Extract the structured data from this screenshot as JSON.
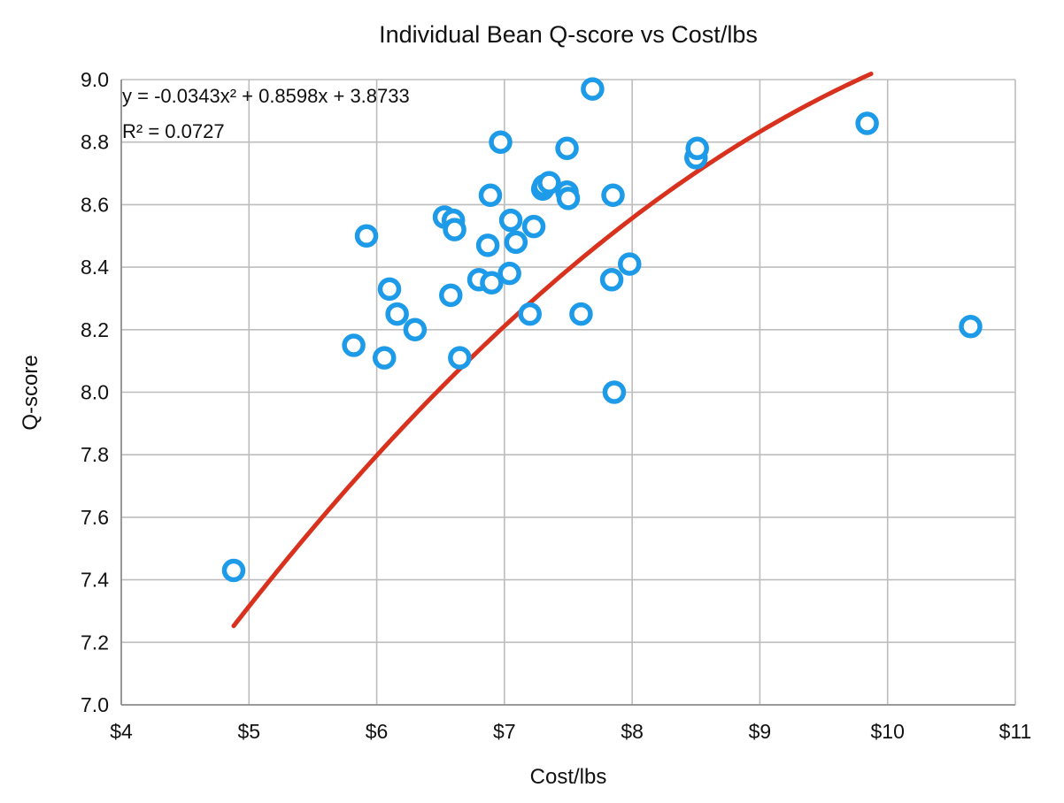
{
  "chart_data": {
    "type": "scatter",
    "title": "Individual Bean Q-score vs Cost/lbs",
    "xlabel": "Cost/lbs",
    "ylabel": "Q-score",
    "xlim": [
      4,
      11
    ],
    "ylim": [
      7.0,
      9.0
    ],
    "x_ticks": [
      4,
      5,
      6,
      7,
      8,
      9,
      10,
      11
    ],
    "x_tick_labels": [
      "$4",
      "$5",
      "$6",
      "$7",
      "$8",
      "$9",
      "$10",
      "$11"
    ],
    "y_ticks": [
      7.0,
      7.2,
      7.4,
      7.6,
      7.8,
      8.0,
      8.2,
      8.4,
      8.6,
      8.8,
      9.0
    ],
    "y_tick_labels": [
      "7.0",
      "7.2",
      "7.4",
      "7.6",
      "7.8",
      "8.0",
      "8.2",
      "8.4",
      "8.6",
      "8.8",
      "9.0"
    ],
    "grid": true,
    "legend": "none",
    "colors": {
      "points": "#1e9be8",
      "trendline": "#d8321e",
      "grid": "#bdbdbd",
      "axis": "#8c8c8c"
    },
    "series": [
      {
        "points": [
          {
            "x": 4.88,
            "y": 7.43
          },
          {
            "x": 5.82,
            "y": 8.15
          },
          {
            "x": 5.92,
            "y": 8.5
          },
          {
            "x": 6.06,
            "y": 8.11
          },
          {
            "x": 6.1,
            "y": 8.33
          },
          {
            "x": 6.16,
            "y": 8.25
          },
          {
            "x": 6.3,
            "y": 8.2
          },
          {
            "x": 6.53,
            "y": 8.56
          },
          {
            "x": 6.58,
            "y": 8.31
          },
          {
            "x": 6.6,
            "y": 8.55
          },
          {
            "x": 6.61,
            "y": 8.52
          },
          {
            "x": 6.65,
            "y": 8.11
          },
          {
            "x": 6.8,
            "y": 8.36
          },
          {
            "x": 6.87,
            "y": 8.47
          },
          {
            "x": 6.89,
            "y": 8.63
          },
          {
            "x": 6.9,
            "y": 8.35
          },
          {
            "x": 6.97,
            "y": 8.8
          },
          {
            "x": 7.04,
            "y": 8.38
          },
          {
            "x": 7.05,
            "y": 8.55
          },
          {
            "x": 7.09,
            "y": 8.48
          },
          {
            "x": 7.2,
            "y": 8.25
          },
          {
            "x": 7.23,
            "y": 8.53
          },
          {
            "x": 7.3,
            "y": 8.65
          },
          {
            "x": 7.31,
            "y": 8.66
          },
          {
            "x": 7.35,
            "y": 8.67
          },
          {
            "x": 7.49,
            "y": 8.78
          },
          {
            "x": 7.49,
            "y": 8.64
          },
          {
            "x": 7.5,
            "y": 8.62
          },
          {
            "x": 7.6,
            "y": 8.25
          },
          {
            "x": 7.69,
            "y": 8.97
          },
          {
            "x": 7.84,
            "y": 8.36
          },
          {
            "x": 7.85,
            "y": 8.63
          },
          {
            "x": 7.86,
            "y": 8.0
          },
          {
            "x": 7.98,
            "y": 8.41
          },
          {
            "x": 8.5,
            "y": 8.75
          },
          {
            "x": 8.51,
            "y": 8.78
          },
          {
            "x": 9.84,
            "y": 8.86
          },
          {
            "x": 10.65,
            "y": 8.21
          }
        ]
      }
    ],
    "trendline": {
      "type": "polynomial",
      "coefficients": {
        "a": -0.0343,
        "b": 0.8598,
        "c": 3.8733
      },
      "x_range": [
        4.88,
        10.65
      ],
      "equation_label": "y = -0.0343x² + 0.8598x + 3.8733",
      "r2_label": "R² = 0.0727"
    }
  }
}
